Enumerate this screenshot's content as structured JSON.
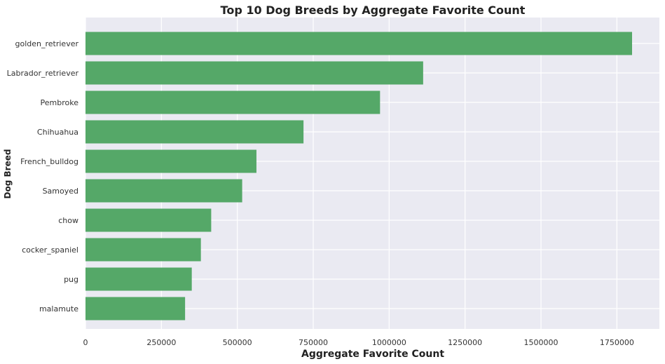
{
  "chart_data": {
    "type": "bar",
    "orientation": "horizontal",
    "title": "Top 10 Dog Breeds by Aggregate Favorite Count",
    "xlabel": "Aggregate Favorite Count",
    "ylabel": "Dog Breed",
    "categories": [
      "golden_retriever",
      "Labrador_retriever",
      "Pembroke",
      "Chihuahua",
      "French_bulldog",
      "Samoyed",
      "chow",
      "cocker_spaniel",
      "pug",
      "malamute"
    ],
    "values": [
      1800000,
      1112000,
      970000,
      718000,
      563000,
      516000,
      414000,
      380000,
      350000,
      328000
    ],
    "xlim": [
      0,
      1890000
    ],
    "xticks": [
      0,
      250000,
      500000,
      750000,
      1000000,
      1250000,
      1500000,
      1750000
    ],
    "xtick_labels": [
      "0",
      "250000",
      "500000",
      "750000",
      "1000000",
      "1250000",
      "1500000",
      "1750000"
    ],
    "bar_color": "#55a868",
    "background_color": "#eaeaf2",
    "grid": true
  }
}
